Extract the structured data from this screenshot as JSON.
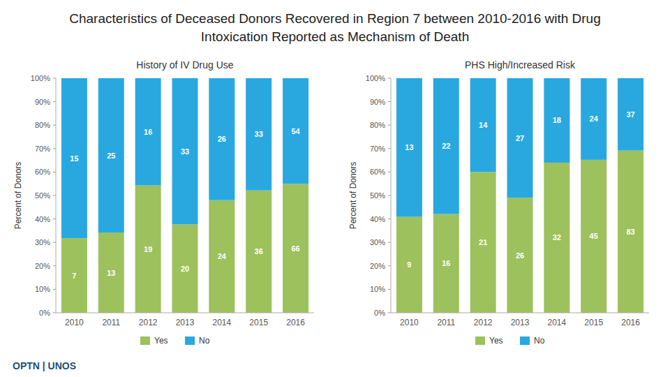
{
  "title": "Characteristics of Deceased Donors Recovered in Region 7 between 2010-2016 with Drug Intoxication Reported as Mechanism of Death",
  "annotations": [
    "OPTN | UNOS"
  ],
  "chart_data": [
    {
      "type": "bar",
      "stacked": true,
      "title": "History of IV Drug Use",
      "ylabel": "Percent of Donors",
      "categories": [
        "2010",
        "2011",
        "2012",
        "2013",
        "2014",
        "2015",
        "2016"
      ],
      "series": [
        {
          "name": "Yes",
          "color": "#9DC15C",
          "values": [
            31.8181818181818,
            34.2105263157895,
            54.2857142857143,
            37.7358490566038,
            48,
            52.1739130434783,
            55
          ],
          "counts": [
            7,
            13,
            19,
            20,
            24,
            36,
            66
          ]
        },
        {
          "name": "No",
          "color": "#29A8E0",
          "values": [
            68.1818181818182,
            65.7894736842105,
            45.7142857142857,
            62.2641509433962,
            52,
            47.8260869565217,
            45
          ],
          "counts": [
            15,
            25,
            16,
            33,
            26,
            33,
            54
          ]
        }
      ],
      "ylim": [
        0,
        100
      ],
      "yticks": [
        {
          "value": 0,
          "label": "0%"
        },
        {
          "value": 10,
          "label": "10%"
        },
        {
          "value": 20,
          "label": "20%"
        },
        {
          "value": 30,
          "label": "30%"
        },
        {
          "value": 40,
          "label": "40%"
        },
        {
          "value": 50,
          "label": "50%"
        },
        {
          "value": 60,
          "label": "60%"
        },
        {
          "value": 70,
          "label": "70%"
        },
        {
          "value": 80,
          "label": "80%"
        },
        {
          "value": 90,
          "label": "90%"
        },
        {
          "value": 100,
          "label": "100%"
        }
      ],
      "grid": false,
      "legend": "bottom"
    },
    {
      "type": "bar",
      "stacked": true,
      "title": "PHS High/Increased Risk",
      "ylabel": "Percent of Donors",
      "categories": [
        "2010",
        "2011",
        "2012",
        "2013",
        "2014",
        "2015",
        "2016"
      ],
      "series": [
        {
          "name": "Yes",
          "color": "#9DC15C",
          "values": [
            40.9090909090909,
            42.1052631578947,
            60,
            49.0566037735849,
            64,
            65.2173913043478,
            69.1666666666667
          ],
          "counts": [
            9,
            16,
            21,
            26,
            32,
            45,
            83
          ]
        },
        {
          "name": "No",
          "color": "#29A8E0",
          "values": [
            59.0909090909091,
            57.8947368421053,
            40,
            50.9433962264151,
            36,
            34.7826086956522,
            30.8333333333333
          ],
          "counts": [
            13,
            22,
            14,
            27,
            18,
            24,
            37
          ]
        }
      ],
      "ylim": [
        0,
        100
      ],
      "yticks": [
        {
          "value": 0,
          "label": "0%"
        },
        {
          "value": 10,
          "label": "10%"
        },
        {
          "value": 20,
          "label": "20%"
        },
        {
          "value": 30,
          "label": "30%"
        },
        {
          "value": 40,
          "label": "40%"
        },
        {
          "value": 50,
          "label": "50%"
        },
        {
          "value": 60,
          "label": "60%"
        },
        {
          "value": 70,
          "label": "70%"
        },
        {
          "value": 80,
          "label": "80%"
        },
        {
          "value": 90,
          "label": "90%"
        },
        {
          "value": 100,
          "label": "100%"
        }
      ],
      "grid": false,
      "legend": "bottom"
    }
  ]
}
